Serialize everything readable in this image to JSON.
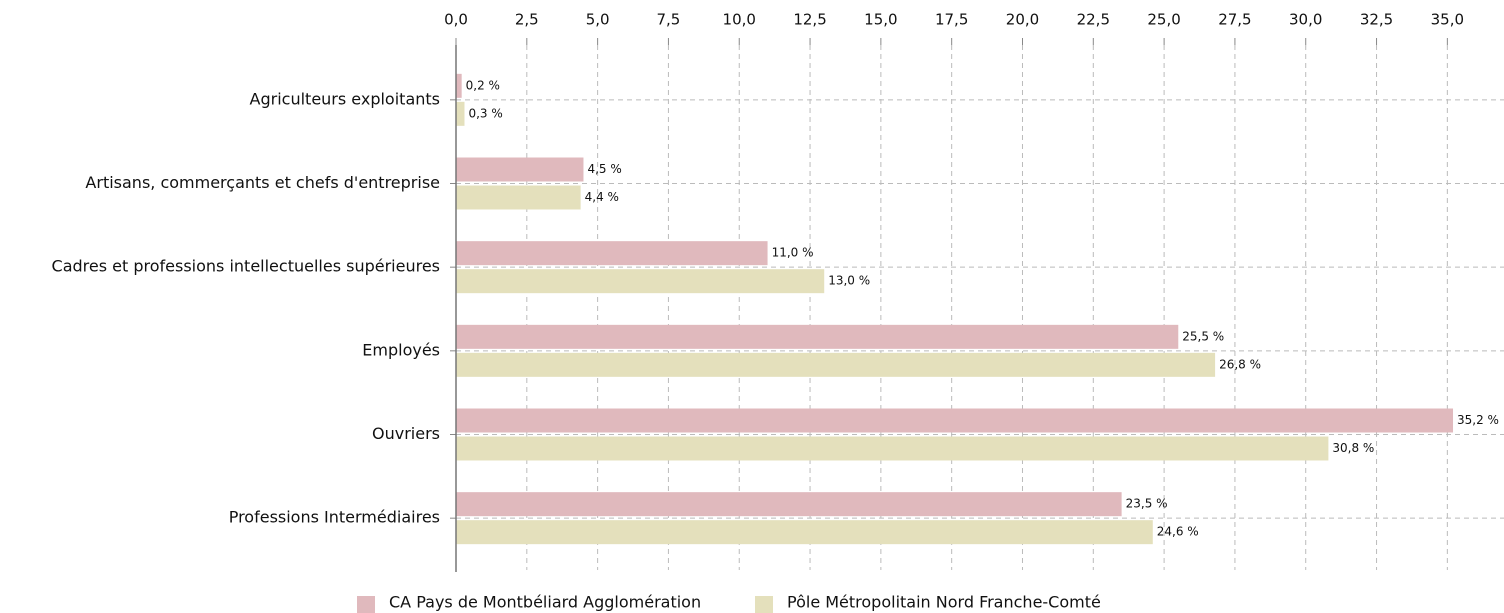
{
  "chart_data": {
    "type": "bar",
    "orientation": "horizontal",
    "categories": [
      "Agriculteurs exploitants",
      "Artisans, commerçants et chefs d'entreprise",
      "Cadres et professions intellectuelles supérieures",
      "Employés",
      "Ouvriers",
      "Professions Intermédiaires"
    ],
    "series": [
      {
        "name": "CA Pays de Montbéliard Agglomération",
        "color": "#e0b9bd",
        "values": [
          0.2,
          4.5,
          11.0,
          25.5,
          35.2,
          23.5
        ],
        "value_labels": [
          "0,2 %",
          "4,5 %",
          "11,0 %",
          "25,5 %",
          "35,2 %",
          "23,5 %"
        ]
      },
      {
        "name": "Pôle Métropolitain Nord Franche-Comté",
        "color": "#e4e0bc",
        "values": [
          0.3,
          4.4,
          13.0,
          26.8,
          30.8,
          24.6
        ],
        "value_labels": [
          "0,3 %",
          "4,4 %",
          "13,0 %",
          "26,8 %",
          "30,8 %",
          "24,6 %"
        ]
      }
    ],
    "xlim": [
      0,
      37
    ],
    "xticks": [
      {
        "value": 0,
        "label": "0,0"
      },
      {
        "value": 2.5,
        "label": "2,5"
      },
      {
        "value": 5,
        "label": "5,0"
      },
      {
        "value": 7.5,
        "label": "7,5"
      },
      {
        "value": 10,
        "label": "10,0"
      },
      {
        "value": 12.5,
        "label": "12,5"
      },
      {
        "value": 15,
        "label": "15,0"
      },
      {
        "value": 17.5,
        "label": "17,5"
      },
      {
        "value": 20,
        "label": "20,0"
      },
      {
        "value": 22.5,
        "label": "22,5"
      },
      {
        "value": 25,
        "label": "25,0"
      },
      {
        "value": 27.5,
        "label": "27,5"
      },
      {
        "value": 30,
        "label": "30,0"
      },
      {
        "value": 32.5,
        "label": "32,5"
      },
      {
        "value": 35,
        "label": "35,0"
      }
    ],
    "grid": true
  }
}
